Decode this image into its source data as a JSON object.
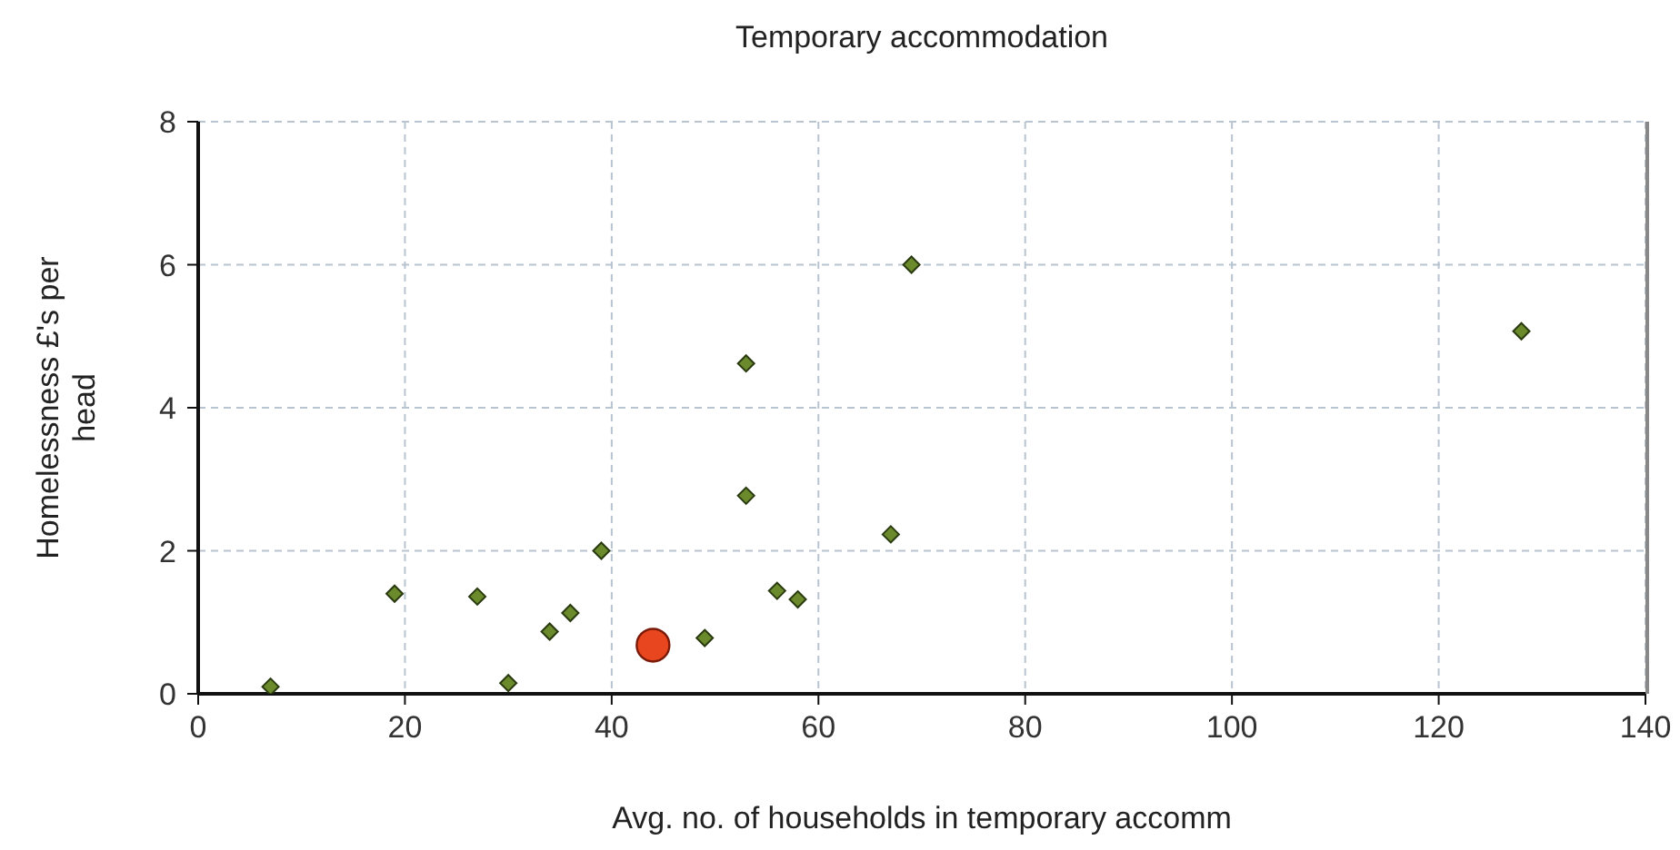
{
  "chart_data": {
    "type": "scatter",
    "title": "Temporary accommodation",
    "xlabel": "Avg. no. of households in temporary accomm",
    "ylabel": "Homelessness £'s per head",
    "xlim": [
      0,
      140
    ],
    "xticks": [
      0,
      20,
      40,
      60,
      80,
      100,
      120,
      140
    ],
    "ylim": [
      0,
      8
    ],
    "yticks": [
      0,
      2,
      4,
      6,
      8
    ],
    "grid": true,
    "series": [
      {
        "color": "#6b8a2c",
        "marker": "diamond",
        "x": [
          7,
          19,
          27,
          30,
          34,
          36,
          39,
          49,
          53,
          53,
          56,
          58,
          67,
          69,
          128
        ],
        "values": [
          0.1,
          1.4,
          1.36,
          0.15,
          0.87,
          1.13,
          2,
          0.78,
          4.62,
          2.77,
          1.44,
          1.32,
          2.23,
          6,
          5.07
        ]
      },
      {
        "color": "#e8461e",
        "marker": "circle",
        "x": [
          44
        ],
        "values": [
          0.68
        ]
      }
    ]
  }
}
